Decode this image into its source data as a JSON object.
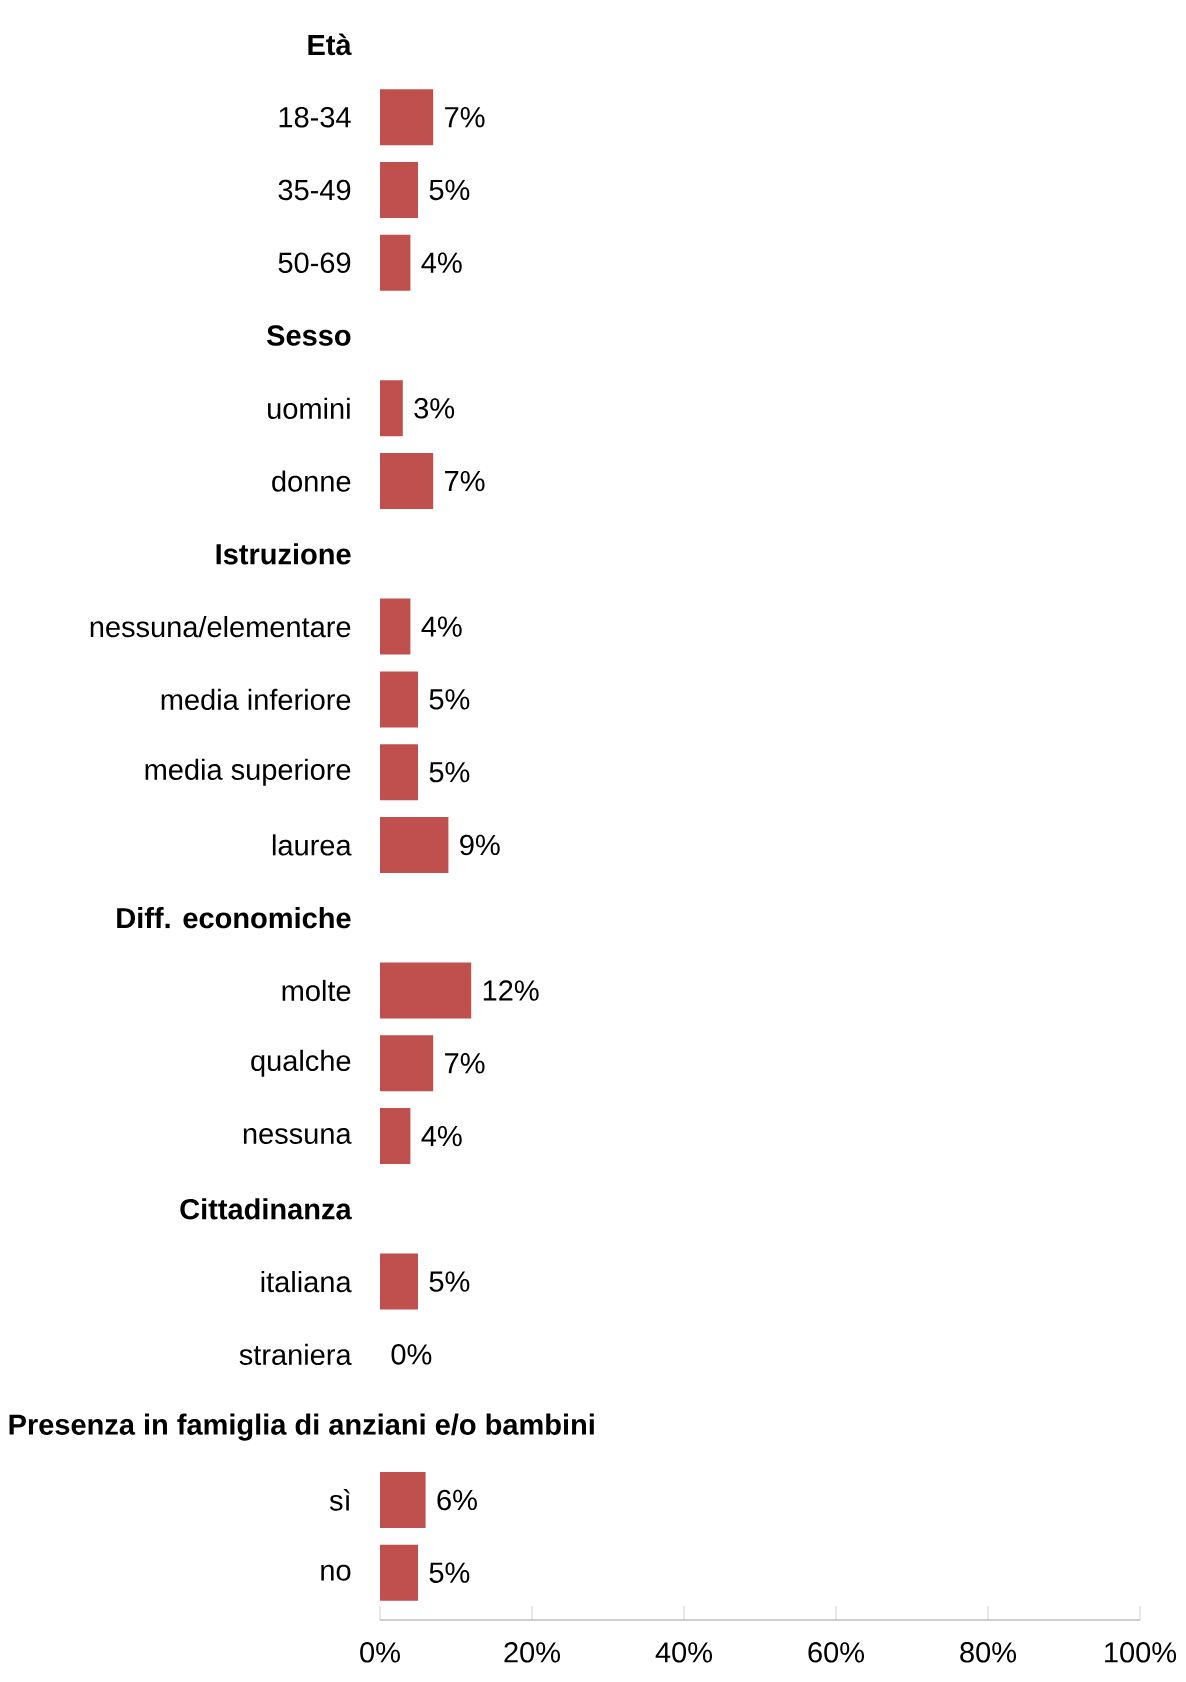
{
  "chart_data": {
    "type": "bar",
    "orientation": "horizontal",
    "color": "#c0504d",
    "categories": [
      "Età",
      "18-34",
      "35-49",
      "50-69",
      "Sesso",
      "uomini",
      "donne",
      "Istruzione",
      "nessuna/elementare",
      "media inferiore",
      "media superiore",
      "laurea",
      "Diff. economiche",
      "molte",
      "qualche",
      "nessuna",
      "Cittadinanza",
      "italiana",
      "straniera",
      "Presenza in famiglia di anziani e/o bambini",
      "sì",
      "no"
    ],
    "values": [
      null,
      7,
      5,
      4,
      null,
      3,
      7,
      null,
      4,
      5,
      5,
      9,
      null,
      12,
      7,
      4,
      null,
      5,
      0,
      null,
      6,
      5
    ],
    "value_labels": [
      null,
      "7%",
      "5%",
      "4%",
      null,
      "3%",
      "7%",
      null,
      "4%",
      "5%",
      "5%",
      "9%",
      null,
      "12%",
      "7%",
      "4%",
      null,
      "5%",
      "0%",
      null,
      "6%",
      "5%"
    ],
    "xlim": [
      0,
      100
    ],
    "xticks": [
      {
        "value": 0,
        "label": "0%"
      },
      {
        "value": 20,
        "label": "20%"
      },
      {
        "value": 40,
        "label": "40%"
      },
      {
        "value": 60,
        "label": "60%"
      },
      {
        "value": 80,
        "label": "80%"
      },
      {
        "value": 100,
        "label": "100%"
      }
    ],
    "grid": false
  }
}
